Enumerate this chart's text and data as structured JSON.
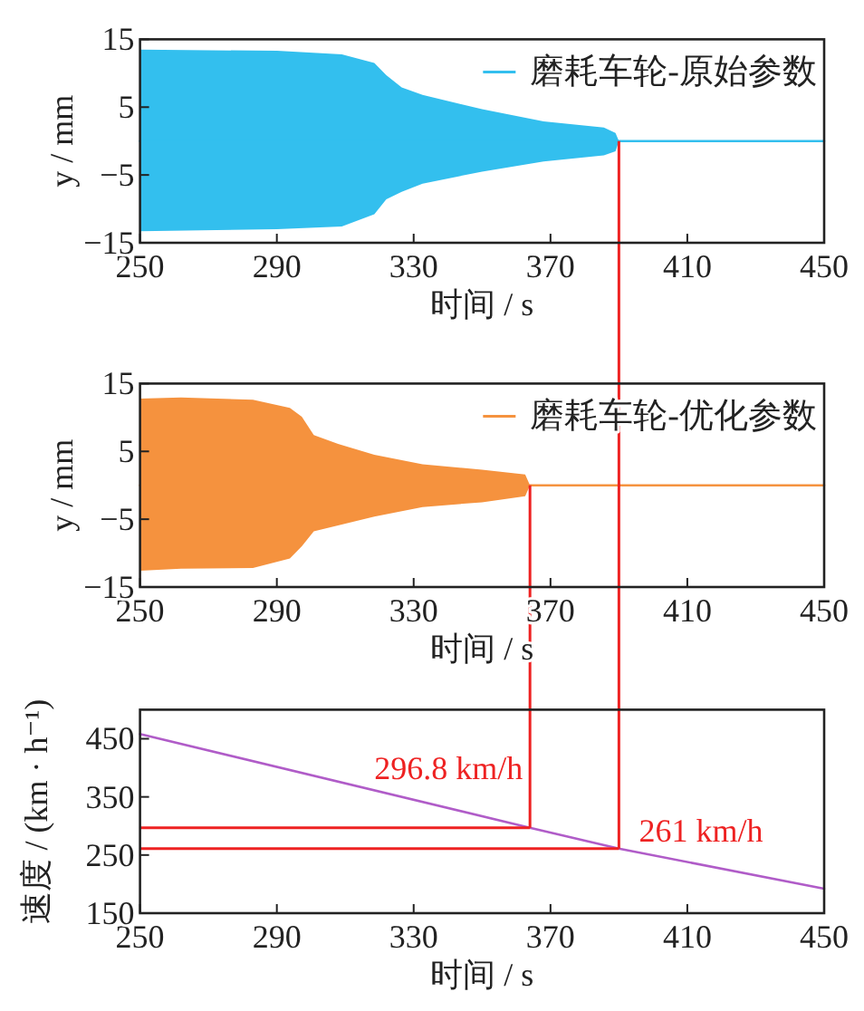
{
  "chart_data": [
    {
      "type": "line",
      "xlabel": "时间 / s",
      "ylabel": "y / mm",
      "xlim": [
        250,
        450
      ],
      "xticks": [
        250,
        290,
        330,
        370,
        410,
        450
      ],
      "ylim": [
        -15,
        15
      ],
      "yticks": [
        -15,
        -5,
        5,
        15
      ],
      "legend": "top right",
      "grid": false,
      "series": [
        {
          "name": "磨耗车轮-原始参数",
          "color": "#33bfee",
          "x": [
            250,
            290,
            309,
            318.5,
            322,
            326.5,
            332.6,
            350,
            368,
            385.6,
            389,
            390,
            450
          ],
          "values": [
            0,
            0,
            0,
            0,
            0,
            0,
            0,
            0,
            0,
            0,
            0,
            0,
            0
          ],
          "upper": [
            13.5,
            13.3,
            12.8,
            11.5,
            9.7,
            7.9,
            6.8,
            4.7,
            2.9,
            2.0,
            1.2,
            0,
            null
          ],
          "lower": [
            -13.3,
            -13.0,
            -12.6,
            -10.8,
            -8.6,
            -7.5,
            -6.3,
            -4.5,
            -3.0,
            -2.1,
            -1.5,
            0,
            null
          ]
        }
      ],
      "ref_lines": [
        {
          "axis": "x",
          "value": 390,
          "color": "#ee2222"
        }
      ]
    },
    {
      "type": "line",
      "xlabel": "时间 / s",
      "ylabel": "y / mm",
      "xlim": [
        250,
        450
      ],
      "xticks": [
        250,
        290,
        330,
        370,
        410,
        450
      ],
      "ylim": [
        -15,
        15
      ],
      "yticks": [
        -15,
        -5,
        5,
        15
      ],
      "legend": "top right",
      "grid": false,
      "series": [
        {
          "name": "磨耗车轮-优化参数",
          "color": "#f5923e",
          "x": [
            250,
            262,
            283,
            293.8,
            297.3,
            300.8,
            307.9,
            318.5,
            332.6,
            350,
            362.6,
            364,
            450
          ],
          "values": [
            0,
            0,
            0,
            0,
            0,
            0,
            0,
            0,
            0,
            0,
            0,
            0,
            0
          ],
          "upper": [
            12.8,
            12.95,
            12.6,
            11.4,
            10.1,
            7.4,
            6.1,
            4.5,
            3.1,
            2.3,
            1.6,
            0,
            null
          ],
          "lower": [
            -12.6,
            -12.3,
            -12.2,
            -10.8,
            -9.0,
            -6.8,
            -5.9,
            -4.6,
            -3.2,
            -2.5,
            -1.6,
            0,
            null
          ]
        }
      ],
      "ref_lines": [
        {
          "axis": "x",
          "value": 364,
          "color": "#ee2222"
        },
        {
          "axis": "x",
          "value": 390,
          "color": "#ee2222"
        }
      ]
    },
    {
      "type": "line",
      "xlabel": "时间 / s",
      "ylabel": "速度 / (km · h⁻¹)",
      "xlim": [
        250,
        450
      ],
      "xticks": [
        250,
        290,
        330,
        370,
        410,
        450
      ],
      "ylim": [
        150,
        500
      ],
      "yticks": [
        150,
        250,
        350,
        450
      ],
      "grid": false,
      "series": [
        {
          "color": "#b05cc8",
          "x": [
            250,
            364,
            390,
            450
          ],
          "values": [
            458,
            297,
            261,
            192
          ]
        }
      ],
      "ref_lines": [
        {
          "axis": "x",
          "value": 364,
          "color": "#ee2222"
        },
        {
          "axis": "x",
          "value": 390,
          "color": "#ee2222"
        },
        {
          "axis": "y",
          "value": 296.8,
          "color": "#ee2222"
        },
        {
          "axis": "y",
          "value": 261,
          "color": "#ee2222"
        }
      ],
      "annotations": [
        {
          "text": "296.8 km/h",
          "x": 364,
          "y": 296.8
        },
        {
          "text": "261 km/h",
          "x": 390,
          "y": 261
        }
      ]
    }
  ]
}
